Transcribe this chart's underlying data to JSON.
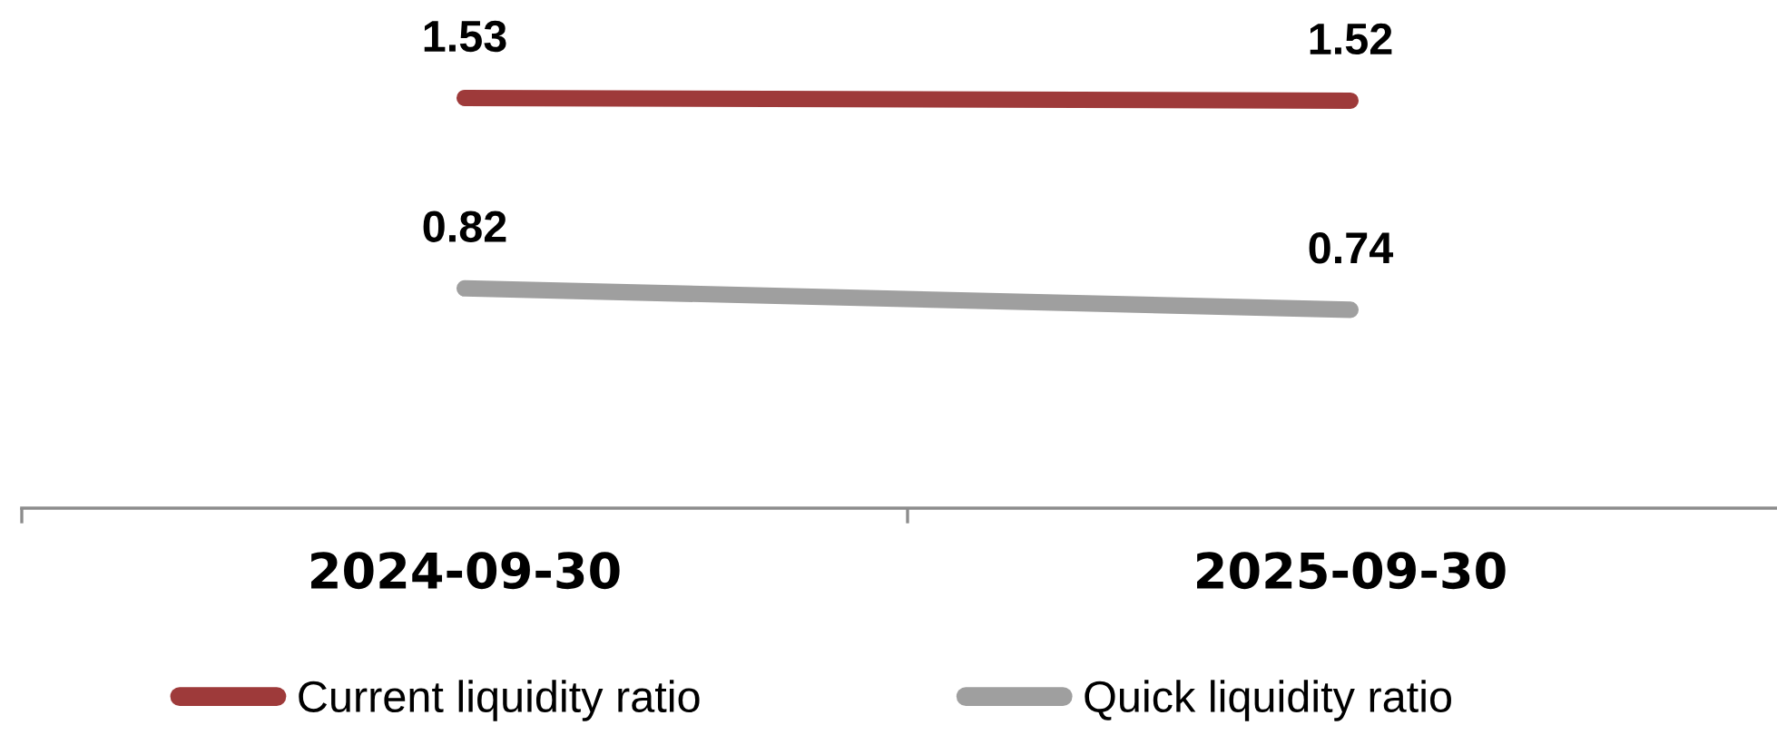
{
  "chart_data": {
    "type": "line",
    "categories": [
      "2024-09-30",
      "2025-09-30"
    ],
    "series": [
      {
        "name": "Current liquidity ratio",
        "color": "#9e3a3a",
        "values": [
          1.53,
          1.52
        ]
      },
      {
        "name": "Quick liquidity ratio",
        "color": "#9f9f9f",
        "values": [
          0.82,
          0.74
        ]
      }
    ],
    "data_labels": true,
    "legend": "bottom",
    "tick_labels": "x",
    "line_style": "solid"
  }
}
